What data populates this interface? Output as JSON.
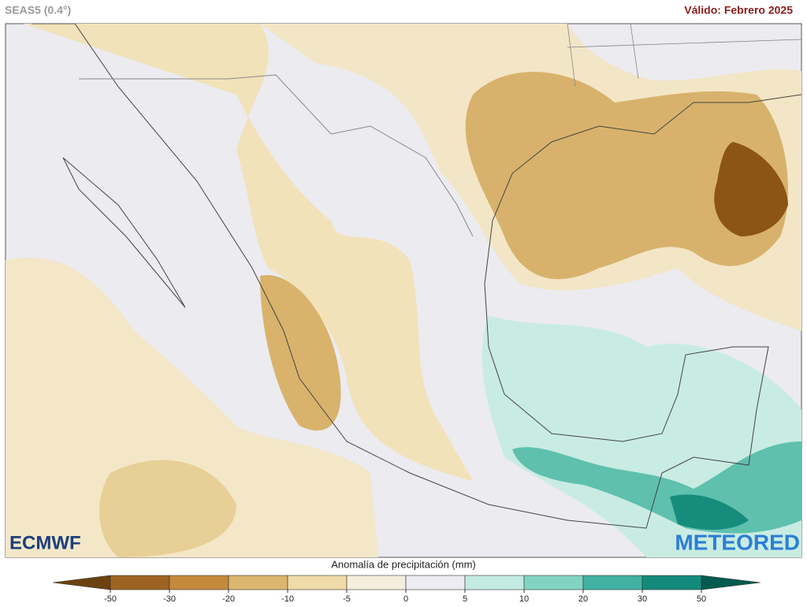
{
  "header": {
    "model": "SEAS5 (0.4°)",
    "valid": "Válido: Febrero 2025"
  },
  "logos": {
    "left": "ECMWF",
    "right": "METEORED"
  },
  "legend": {
    "title": "Anomalía de precipitación (mm)",
    "ticks": [
      -50,
      -30,
      -20,
      -10,
      -5,
      0,
      5,
      10,
      20,
      30,
      50
    ],
    "colors": [
      "#6b4210",
      "#9c6420",
      "#c48a3c",
      "#dcb66f",
      "#efdba8",
      "#f5eedc",
      "#ececf2",
      "#c4ebe1",
      "#82d4c2",
      "#42b1a1",
      "#138a7c",
      "#055a4f"
    ]
  }
}
